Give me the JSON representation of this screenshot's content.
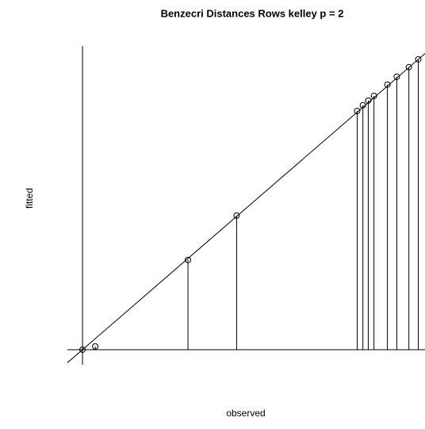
{
  "chart_data": {
    "type": "scatter",
    "title": "Benzecri Distances Rows kelley p = 2",
    "xlabel": "observed",
    "ylabel": "fitted",
    "x": [
      0,
      0.038,
      0.314,
      0.459,
      0.818,
      0.835,
      0.851,
      0.868,
      0.908,
      0.936,
      0.972,
      1.0
    ],
    "values": [
      0,
      0.011,
      0.309,
      0.462,
      0.822,
      0.842,
      0.858,
      0.874,
      0.913,
      0.94,
      0.973,
      1.0
    ],
    "color": "#000000",
    "xlim": [
      -0.045,
      1.02
    ],
    "ylim": [
      -0.052,
      1.046
    ],
    "diagonal": true,
    "drop_lines": true,
    "zero_lines": true
  }
}
